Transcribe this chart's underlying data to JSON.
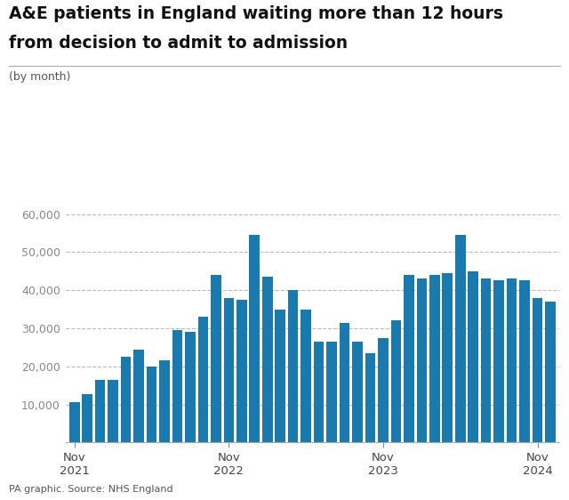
{
  "title_line1": "A&E patients in England waiting more than 12 hours",
  "title_line2": "from decision to admit to admission",
  "subtitle": "(by month)",
  "source": "PA graphic. Source: NHS England",
  "bar_color": "#1a7aad",
  "background_color": "#ffffff",
  "ylim": [
    0,
    65000
  ],
  "yticks": [
    10000,
    20000,
    30000,
    40000,
    50000,
    60000
  ],
  "values": [
    10500,
    12800,
    16500,
    16500,
    22500,
    24500,
    20000,
    21500,
    29500,
    29000,
    33000,
    44000,
    38000,
    37500,
    54500,
    43500,
    35000,
    40000,
    35000,
    26500,
    26500,
    31500,
    26500,
    23500,
    27500,
    32000,
    44000,
    43000,
    44000,
    44500,
    54500,
    45000,
    43000,
    42500,
    43000,
    42500,
    38000,
    37000
  ],
  "xtick_positions": [
    0,
    12,
    24,
    36
  ],
  "xtick_labels": [
    "Nov\n2021",
    "Nov\n2022",
    "Nov\n2023",
    "Nov\n2024"
  ]
}
